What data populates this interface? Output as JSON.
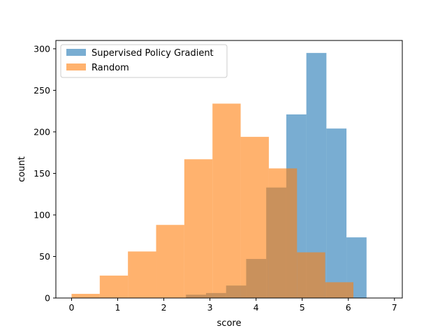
{
  "chart_data": {
    "type": "histogram",
    "title": "",
    "xlabel": "score",
    "ylabel": "count",
    "xlim": [
      -0.34,
      7.17
    ],
    "ylim": [
      0,
      310
    ],
    "xticks": [
      0,
      1,
      2,
      3,
      4,
      5,
      6,
      7
    ],
    "yticks": [
      0,
      50,
      100,
      150,
      200,
      250,
      300
    ],
    "grid": false,
    "legend_position": "upper left",
    "series": [
      {
        "name": "Supervised Policy Gradient",
        "color": "#1f77b4",
        "opacity": 0.6,
        "bin_edges": [
          2.48,
          2.915,
          3.35,
          3.785,
          4.22,
          4.655,
          5.09,
          5.525,
          5.96,
          6.395,
          6.83
        ],
        "counts": [
          4,
          6,
          15,
          47,
          133,
          221,
          295,
          204,
          73,
          0
        ]
      },
      {
        "name": "Random",
        "color": "#ff7f0e",
        "opacity": 0.6,
        "bin_edges": [
          0.0,
          0.611,
          1.222,
          1.833,
          2.444,
          3.055,
          3.666,
          4.277,
          4.888,
          5.499,
          6.11
        ],
        "counts": [
          5,
          27,
          56,
          88,
          167,
          234,
          194,
          156,
          55,
          19
        ]
      }
    ]
  }
}
